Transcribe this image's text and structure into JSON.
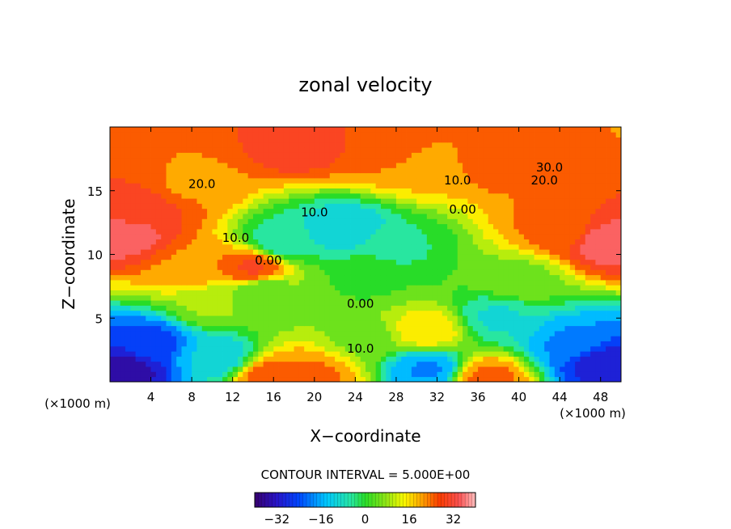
{
  "chart_data": {
    "type": "heatmap",
    "subtype": "filled-contour",
    "title": "zonal velocity",
    "xlabel": "X−coordinate",
    "ylabel": "Z−coordinate",
    "x_unit_label": "(×1000 m)",
    "x_unit_label_right": "(×1000 m)",
    "xlim": [
      0,
      50
    ],
    "ylim": [
      0,
      20
    ],
    "x_ticks": [
      4,
      8,
      12,
      16,
      20,
      24,
      28,
      32,
      36,
      40,
      44,
      48
    ],
    "y_ticks": [
      5,
      10,
      15
    ],
    "contour_interval_text": "CONTOUR INTERVAL = 5.000E+00",
    "contour_interval": 5.0,
    "colorbar": {
      "min": -40,
      "max": 40,
      "ticks": [
        -32,
        -16,
        0,
        16,
        32
      ],
      "tick_labels": [
        "−32",
        "−16",
        "0",
        "16",
        "32"
      ]
    },
    "contour_labels": [
      {
        "text": "20.0",
        "x": 9,
        "y": 15.2
      },
      {
        "text": "30.0",
        "x": 43,
        "y": 16.5
      },
      {
        "text": "20.0",
        "x": 42.5,
        "y": 15.5
      },
      {
        "text": "10.0",
        "x": 34,
        "y": 15.5
      },
      {
        "text": "10.0",
        "x": 20,
        "y": 13
      },
      {
        "text": "0.00",
        "x": 34.5,
        "y": 13.2
      },
      {
        "text": "10.0",
        "x": 12.3,
        "y": 11
      },
      {
        "text": "0.00",
        "x": 15.5,
        "y": 9.2
      },
      {
        "text": "0.00",
        "x": 24.5,
        "y": 5.8
      },
      {
        "text": "10.0",
        "x": 24.5,
        "y": 2.3
      }
    ],
    "field_features": [
      {
        "x": 1.5,
        "y": 11.5,
        "value": 35
      },
      {
        "x": 3,
        "y": 13.5,
        "value": 30
      },
      {
        "x": 8,
        "y": 9,
        "value": 22
      },
      {
        "x": 8,
        "y": 15.5,
        "value": 22
      },
      {
        "x": 14,
        "y": 9,
        "value": 28
      },
      {
        "x": 18.5,
        "y": 18.5,
        "value": 30
      },
      {
        "x": 28,
        "y": 18,
        "value": 27
      },
      {
        "x": 38,
        "y": 17.5,
        "value": 25
      },
      {
        "x": 48.5,
        "y": 11,
        "value": 35
      },
      {
        "x": 44,
        "y": 12,
        "value": 24
      },
      {
        "x": 30,
        "y": 17,
        "value": 18
      },
      {
        "x": 23,
        "y": 12,
        "value": -12
      },
      {
        "x": 17,
        "y": 11,
        "value": -7
      },
      {
        "x": 28,
        "y": 10.5,
        "value": -3
      },
      {
        "x": 38,
        "y": 5,
        "value": -8
      },
      {
        "x": 15,
        "y": 7,
        "value": 3
      },
      {
        "x": 31,
        "y": 4,
        "value": 16
      },
      {
        "x": 20,
        "y": 0.5,
        "value": 23
      },
      {
        "x": 16,
        "y": 0.2,
        "value": 26
      },
      {
        "x": 37,
        "y": 0.3,
        "value": 24
      },
      {
        "x": 31,
        "y": 1,
        "value": -18
      },
      {
        "x": 1.5,
        "y": 1,
        "value": -35
      },
      {
        "x": 4,
        "y": 3,
        "value": -25
      },
      {
        "x": 10,
        "y": 2,
        "value": -12
      },
      {
        "x": 48,
        "y": 1.5,
        "value": -30
      },
      {
        "x": 45,
        "y": 3,
        "value": -18
      },
      {
        "x": 25,
        "y": 8,
        "value": 2
      },
      {
        "x": 40,
        "y": 8,
        "value": 6
      },
      {
        "x": 10,
        "y": 6,
        "value": 8
      },
      {
        "x": 25,
        "y": 3.5,
        "value": 6
      }
    ]
  }
}
